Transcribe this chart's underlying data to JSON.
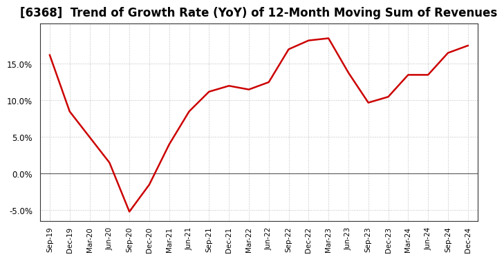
{
  "title": "[6368]  Trend of Growth Rate (YoY) of 12-Month Moving Sum of Revenues",
  "x_labels": [
    "Sep-19",
    "Dec-19",
    "Mar-20",
    "Jun-20",
    "Sep-20",
    "Dec-20",
    "Mar-21",
    "Jun-21",
    "Sep-21",
    "Dec-21",
    "Mar-22",
    "Jun-22",
    "Sep-22",
    "Dec-22",
    "Mar-23",
    "Jun-23",
    "Sep-23",
    "Dec-23",
    "Mar-24",
    "Jun-24",
    "Sep-24",
    "Dec-24"
  ],
  "y_values": [
    16.2,
    8.5,
    5.0,
    1.5,
    -5.2,
    -1.5,
    4.0,
    8.5,
    11.2,
    12.0,
    11.5,
    12.5,
    17.0,
    18.2,
    18.5,
    13.8,
    9.7,
    10.5,
    13.5,
    13.5,
    16.5,
    17.5
  ],
  "line_color": "#cc0000",
  "line_width": 1.8,
  "ylim": [
    -6.5,
    20.5
  ],
  "yticks": [
    -5.0,
    0.0,
    5.0,
    10.0,
    15.0
  ],
  "grid_color": "#bbbbbb",
  "bg_color": "#ffffff",
  "plot_bg_color": "#ffffff",
  "title_fontsize": 12,
  "zero_line_color": "#666666",
  "spine_color": "#333333"
}
